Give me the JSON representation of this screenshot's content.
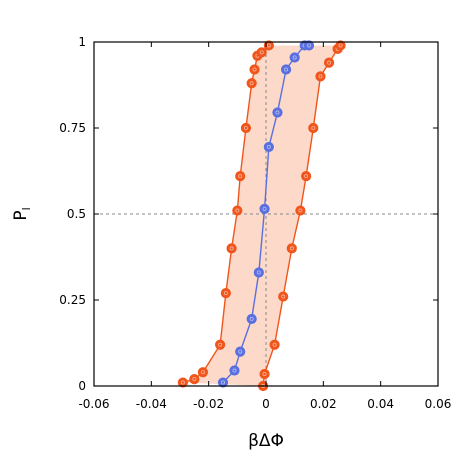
{
  "chart_data": {
    "type": "line",
    "title": "",
    "xlabel": "βΔΦ",
    "ylabel": "P",
    "ylabel_subscript": "l",
    "xlim": [
      -0.06,
      0.06
    ],
    "ylim": [
      0,
      1
    ],
    "xticks": [
      "-0.06",
      "-0.04",
      "-0.02",
      "0",
      "0.02",
      "0.04",
      "0.06"
    ],
    "xtick_values": [
      -0.06,
      -0.04,
      -0.02,
      0,
      0.02,
      0.04,
      0.06
    ],
    "yticks": [
      "0",
      "0.25",
      "0.5",
      "0.75",
      "1"
    ],
    "ytick_values": [
      0,
      0.25,
      0.5,
      0.75,
      1
    ],
    "grid": false,
    "colors": {
      "band_fill": "#fcd9c9",
      "band_line": "#f0561c",
      "center_line": "#5a6fe0",
      "reference_line": "#8a8a8a"
    },
    "reference_lines": [
      {
        "orientation": "horizontal",
        "value": 0.5
      },
      {
        "orientation": "vertical",
        "value": 0
      }
    ],
    "series": [
      {
        "role": "lower-bound",
        "x": [
          -0.029,
          -0.025,
          -0.022,
          -0.016,
          -0.014,
          -0.012,
          -0.01,
          -0.009,
          -0.007,
          -0.005,
          -0.004,
          -0.003,
          -0.0015,
          0.001
        ],
        "y": [
          0.01,
          0.02,
          0.04,
          0.12,
          0.27,
          0.4,
          0.51,
          0.61,
          0.75,
          0.88,
          0.92,
          0.96,
          0.97,
          0.99
        ]
      },
      {
        "role": "center",
        "x": [
          -0.015,
          -0.011,
          -0.009,
          -0.005,
          -0.0025,
          -0.0005,
          0.001,
          0.004,
          0.007,
          0.01,
          0.0135,
          0.015
        ],
        "y": [
          0.01,
          0.045,
          0.1,
          0.195,
          0.33,
          0.515,
          0.695,
          0.795,
          0.92,
          0.955,
          0.99,
          0.99
        ]
      },
      {
        "role": "upper-bound",
        "x": [
          -0.001,
          -0.0005,
          0.003,
          0.006,
          0.009,
          0.012,
          0.014,
          0.0165,
          0.019,
          0.022,
          0.025,
          0.026
        ],
        "y": [
          0.0,
          0.035,
          0.12,
          0.26,
          0.4,
          0.51,
          0.61,
          0.75,
          0.9,
          0.94,
          0.98,
          0.99
        ]
      }
    ]
  }
}
